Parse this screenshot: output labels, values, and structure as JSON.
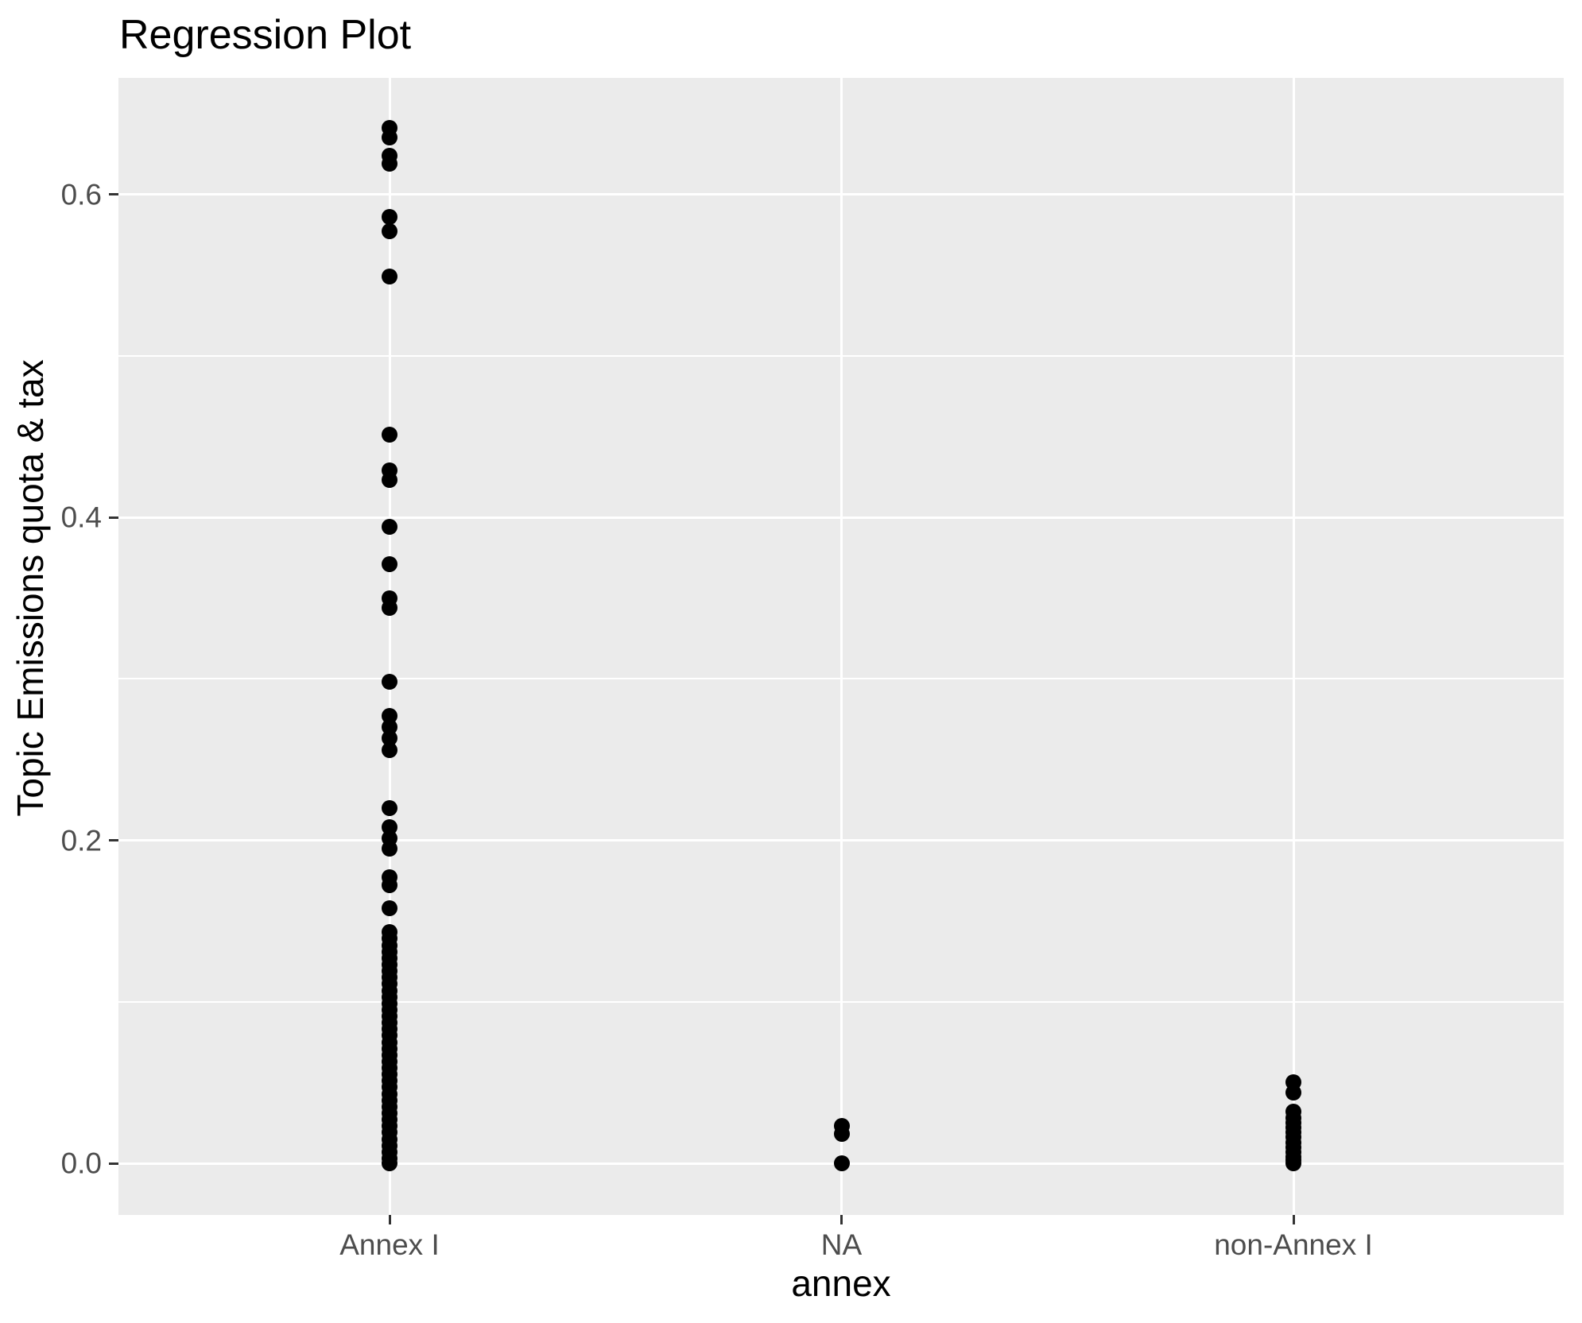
{
  "chart_data": {
    "type": "scatter",
    "title": "Regression Plot",
    "xlabel": "annex",
    "ylabel": "Topic Emissions quota & tax",
    "categories": [
      "Annex I",
      "NA",
      "non-Annex I"
    ],
    "y_ticks": [
      0.0,
      0.2,
      0.4,
      0.6
    ],
    "y_tick_labels": [
      "0.0",
      "0.2",
      "0.4",
      "0.6"
    ],
    "y_minor_ticks": [
      0.1,
      0.3,
      0.5
    ],
    "ylim": [
      -0.032,
      0.672
    ],
    "grid": true,
    "legend": false,
    "series": [
      {
        "name": "Annex I",
        "values": [
          0.641,
          0.635,
          0.624,
          0.619,
          0.586,
          0.577,
          0.549,
          0.451,
          0.429,
          0.423,
          0.394,
          0.371,
          0.35,
          0.344,
          0.298,
          0.277,
          0.27,
          0.263,
          0.256,
          0.22,
          0.208,
          0.201,
          0.195,
          0.177,
          0.172,
          0.158,
          0.143,
          0.139,
          0.135,
          0.131,
          0.127,
          0.123,
          0.119,
          0.115,
          0.111,
          0.107,
          0.103,
          0.099,
          0.095,
          0.091,
          0.087,
          0.083,
          0.079,
          0.075,
          0.071,
          0.067,
          0.063,
          0.059,
          0.055,
          0.051,
          0.047,
          0.043,
          0.039,
          0.035,
          0.031,
          0.027,
          0.023,
          0.019,
          0.015,
          0.011,
          0.007,
          0.003,
          0.0
        ]
      },
      {
        "name": "NA",
        "values": [
          0.023,
          0.018,
          0.0
        ]
      },
      {
        "name": "non-Annex I",
        "values": [
          0.05,
          0.044,
          0.032,
          0.028,
          0.025,
          0.022,
          0.019,
          0.016,
          0.013,
          0.01,
          0.007,
          0.004,
          0.002,
          0.0
        ]
      }
    ],
    "colors": {
      "panel_background": "#EBEBEB",
      "gridline": "#FFFFFF",
      "point": "#000000",
      "tick_label": "#4D4D4D",
      "tick_mark": "#333333",
      "title": "#000000"
    }
  }
}
